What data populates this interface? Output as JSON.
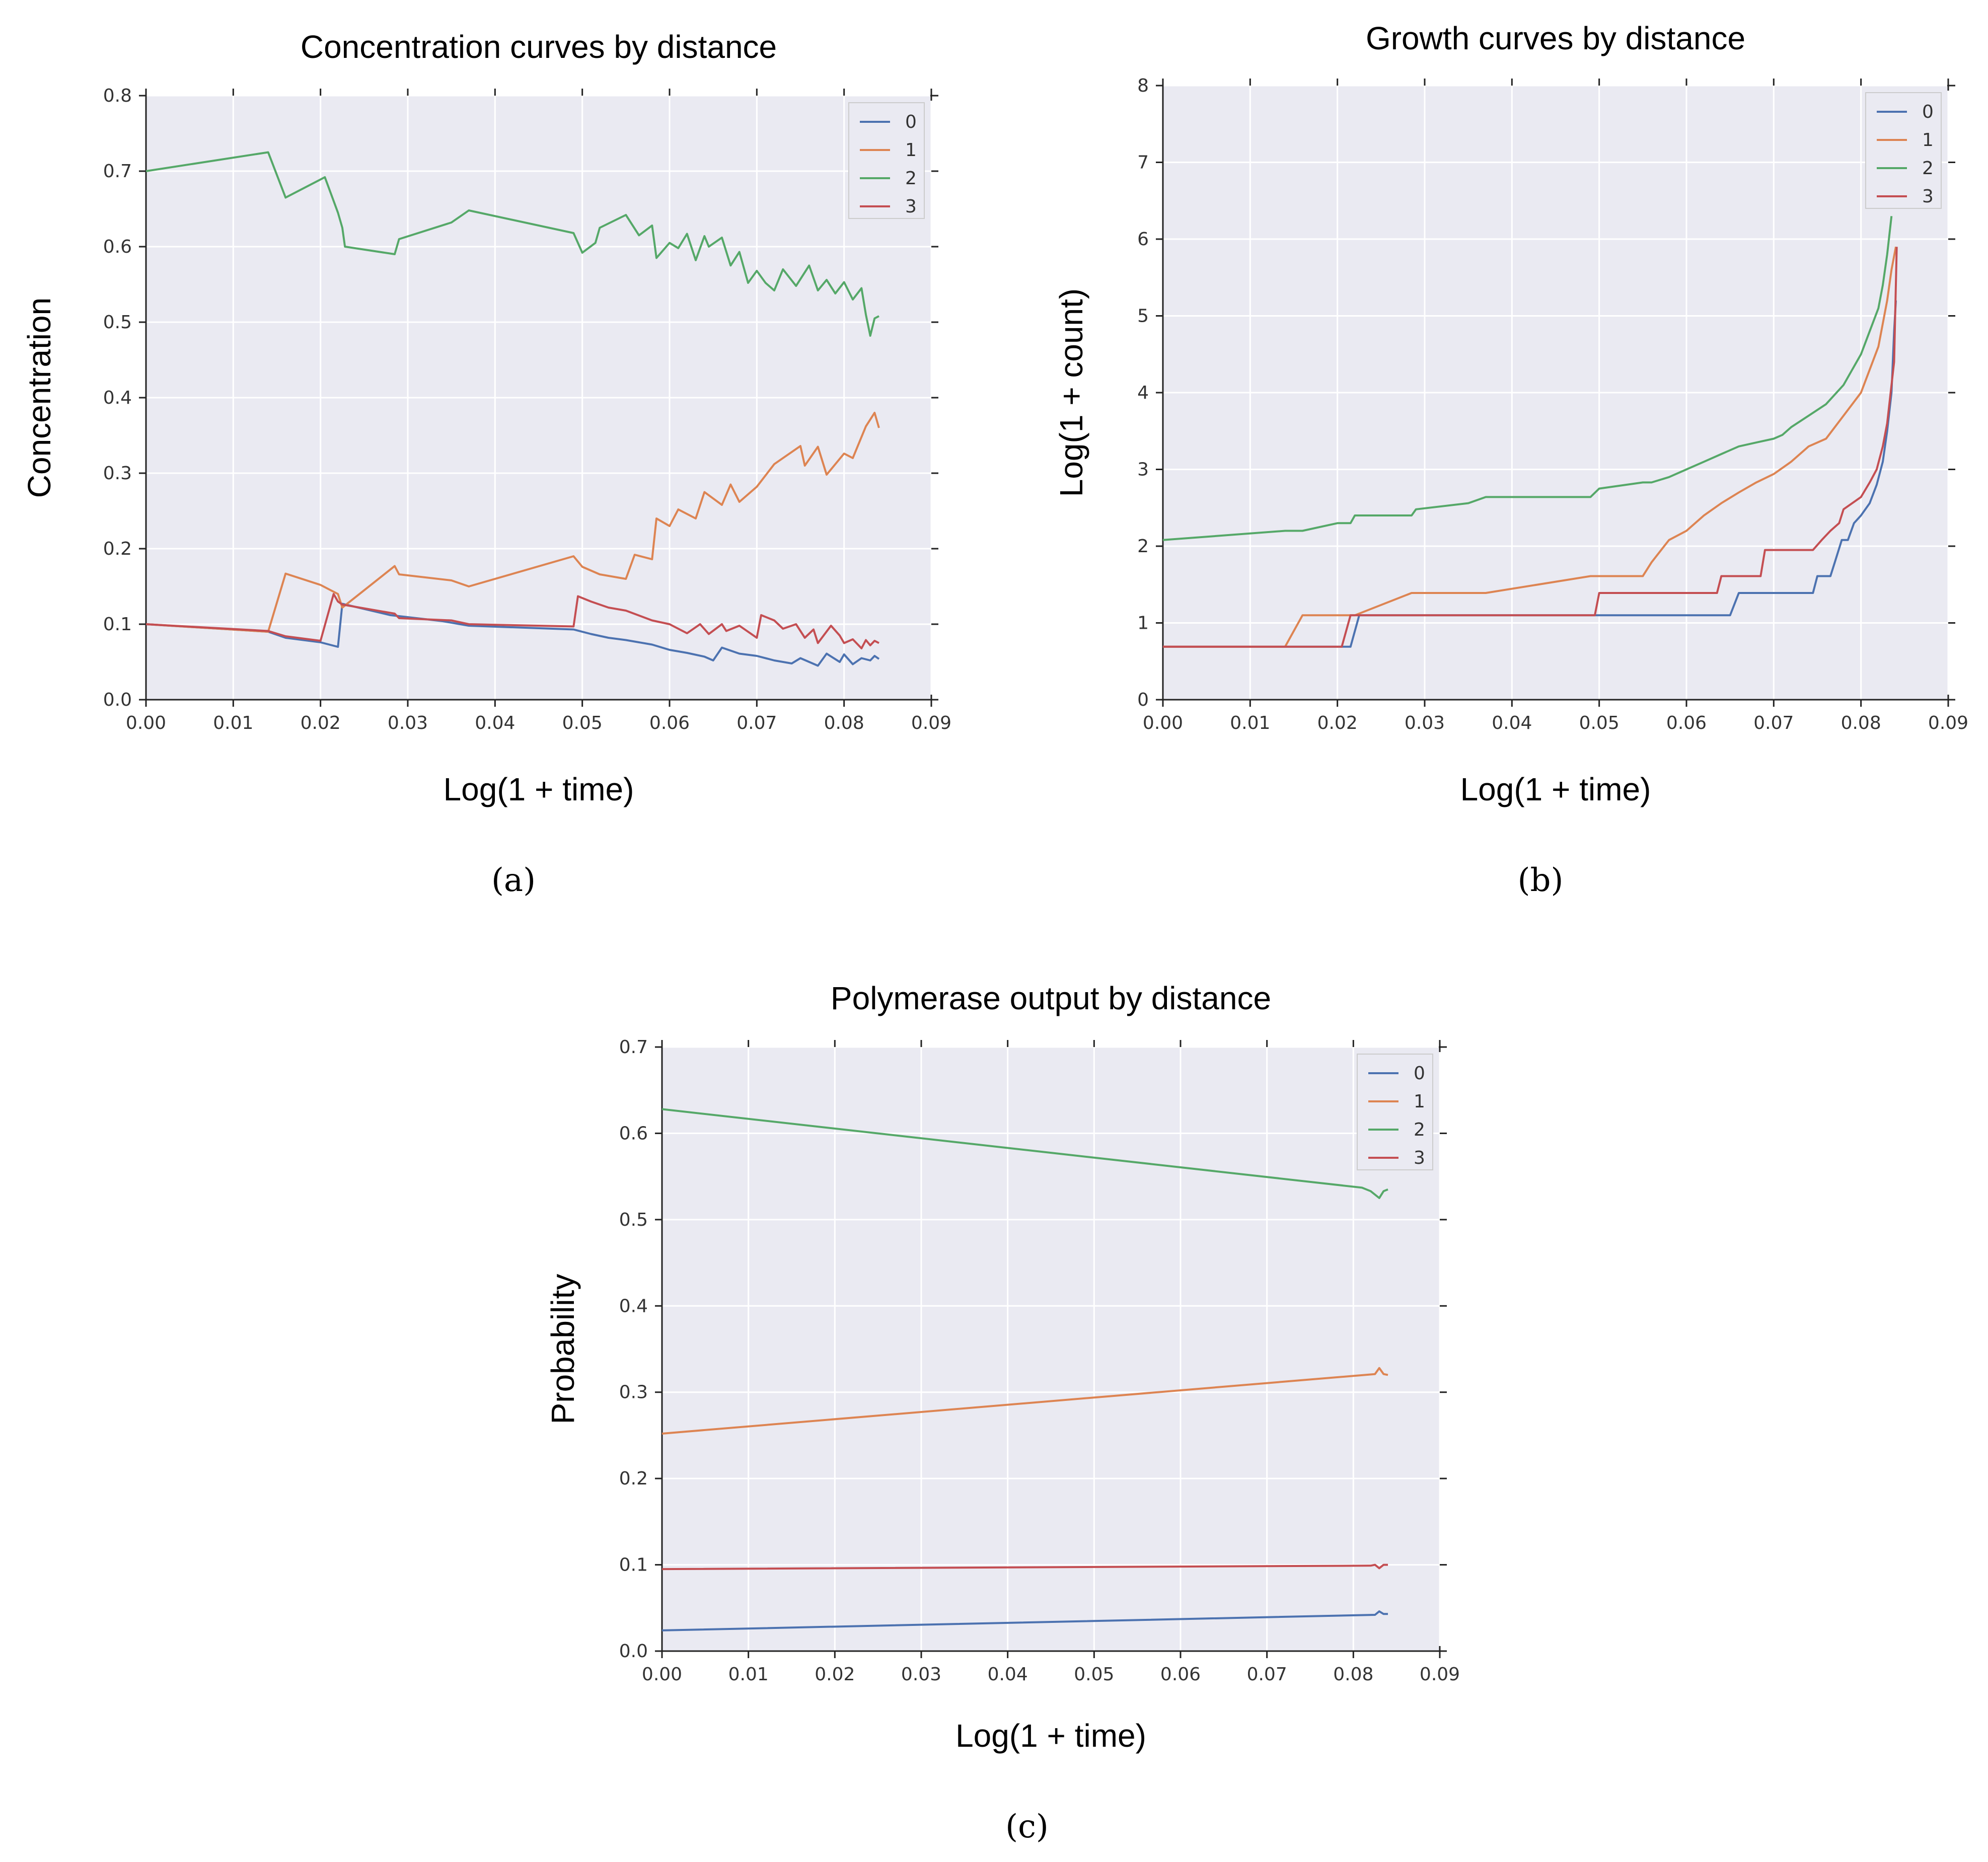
{
  "colors": {
    "series0": "#4c72b0",
    "series1": "#dd8452",
    "series2": "#55a868",
    "series3": "#c44e52",
    "plot_bg": "#eaeaf2",
    "grid": "#ffffff"
  },
  "captions": {
    "a": "(a)",
    "b": "(b)",
    "c": "(c)"
  },
  "chart_data": [
    {
      "id": "a",
      "type": "line",
      "title": "Concentration curves by distance",
      "xlabel": "Log(1 + time)",
      "ylabel": "Concentration",
      "xlim": [
        0,
        0.09
      ],
      "ylim": [
        0,
        0.8
      ],
      "xticks": [
        0,
        0.01,
        0.02,
        0.03,
        0.04,
        0.05,
        0.06,
        0.07,
        0.08,
        0.09
      ],
      "xtick_labels": [
        "0.00",
        "0.01",
        "0.02",
        "0.03",
        "0.04",
        "0.05",
        "0.06",
        "0.07",
        "0.08",
        "0.09"
      ],
      "yticks": [
        0,
        0.1,
        0.2,
        0.3,
        0.4,
        0.5,
        0.6,
        0.7,
        0.8
      ],
      "ytick_labels": [
        "0.0",
        "0.1",
        "0.2",
        "0.3",
        "0.4",
        "0.5",
        "0.6",
        "0.7",
        "0.8"
      ],
      "grid": true,
      "legend": "top-right",
      "series": [
        {
          "name": "0",
          "x": [
            0,
            0.014,
            0.016,
            0.02,
            0.022,
            0.0225,
            0.028,
            0.034,
            0.037,
            0.049,
            0.051,
            0.053,
            0.055,
            0.058,
            0.06,
            0.062,
            0.064,
            0.065,
            0.066,
            0.068,
            0.07,
            0.072,
            0.074,
            0.075,
            0.077,
            0.078,
            0.0795,
            0.08,
            0.081,
            0.082,
            0.083,
            0.0835,
            0.084
          ],
          "y": [
            0.1,
            0.09,
            0.082,
            0.076,
            0.07,
            0.127,
            0.112,
            0.104,
            0.098,
            0.093,
            0.087,
            0.082,
            0.079,
            0.073,
            0.066,
            0.062,
            0.057,
            0.052,
            0.069,
            0.061,
            0.058,
            0.052,
            0.048,
            0.055,
            0.045,
            0.061,
            0.05,
            0.06,
            0.047,
            0.055,
            0.052,
            0.058,
            0.054
          ]
        },
        {
          "name": "1",
          "x": [
            0,
            0.014,
            0.016,
            0.02,
            0.022,
            0.0225,
            0.0285,
            0.029,
            0.035,
            0.037,
            0.049,
            0.05,
            0.052,
            0.055,
            0.056,
            0.058,
            0.0585,
            0.06,
            0.061,
            0.063,
            0.064,
            0.066,
            0.067,
            0.068,
            0.07,
            0.072,
            0.073,
            0.075,
            0.0755,
            0.077,
            0.078,
            0.08,
            0.081,
            0.0825,
            0.0835,
            0.084
          ],
          "y": [
            0.1,
            0.09,
            0.167,
            0.152,
            0.14,
            0.122,
            0.177,
            0.166,
            0.158,
            0.15,
            0.19,
            0.176,
            0.166,
            0.16,
            0.192,
            0.186,
            0.24,
            0.23,
            0.252,
            0.24,
            0.275,
            0.258,
            0.285,
            0.262,
            0.282,
            0.312,
            0.32,
            0.336,
            0.31,
            0.335,
            0.298,
            0.326,
            0.32,
            0.362,
            0.38,
            0.36
          ]
        },
        {
          "name": "2",
          "x": [
            0,
            0.014,
            0.016,
            0.0205,
            0.022,
            0.0225,
            0.0228,
            0.0285,
            0.029,
            0.035,
            0.037,
            0.049,
            0.05,
            0.0515,
            0.052,
            0.055,
            0.0565,
            0.058,
            0.0585,
            0.06,
            0.061,
            0.062,
            0.063,
            0.064,
            0.0645,
            0.066,
            0.067,
            0.068,
            0.069,
            0.07,
            0.071,
            0.072,
            0.073,
            0.0745,
            0.076,
            0.077,
            0.078,
            0.079,
            0.08,
            0.081,
            0.082,
            0.0825,
            0.083,
            0.0835,
            0.084
          ],
          "y": [
            0.7,
            0.725,
            0.665,
            0.692,
            0.645,
            0.625,
            0.6,
            0.59,
            0.61,
            0.632,
            0.648,
            0.618,
            0.592,
            0.605,
            0.625,
            0.642,
            0.615,
            0.628,
            0.585,
            0.605,
            0.598,
            0.617,
            0.582,
            0.614,
            0.6,
            0.612,
            0.575,
            0.593,
            0.552,
            0.568,
            0.552,
            0.542,
            0.57,
            0.548,
            0.575,
            0.542,
            0.556,
            0.538,
            0.553,
            0.53,
            0.545,
            0.51,
            0.482,
            0.505,
            0.508
          ]
        },
        {
          "name": "3",
          "x": [
            0,
            0.014,
            0.016,
            0.02,
            0.0215,
            0.022,
            0.0225,
            0.0285,
            0.029,
            0.035,
            0.037,
            0.049,
            0.0495,
            0.051,
            0.053,
            0.055,
            0.058,
            0.06,
            0.062,
            0.0635,
            0.0645,
            0.066,
            0.0665,
            0.068,
            0.07,
            0.0705,
            0.072,
            0.073,
            0.0745,
            0.0755,
            0.0765,
            0.077,
            0.0785,
            0.0795,
            0.08,
            0.081,
            0.082,
            0.0825,
            0.083,
            0.0835,
            0.084
          ],
          "y": [
            0.1,
            0.091,
            0.084,
            0.078,
            0.14,
            0.13,
            0.126,
            0.114,
            0.108,
            0.105,
            0.1,
            0.097,
            0.137,
            0.13,
            0.122,
            0.118,
            0.105,
            0.1,
            0.088,
            0.1,
            0.087,
            0.1,
            0.091,
            0.098,
            0.082,
            0.112,
            0.105,
            0.094,
            0.1,
            0.082,
            0.093,
            0.075,
            0.098,
            0.085,
            0.075,
            0.08,
            0.068,
            0.079,
            0.072,
            0.078,
            0.075
          ]
        }
      ]
    },
    {
      "id": "b",
      "type": "line",
      "title": "Growth curves by distance",
      "xlabel": "Log(1 + time)",
      "ylabel": "Log(1 + count)",
      "xlim": [
        0,
        0.09
      ],
      "ylim": [
        0,
        8
      ],
      "xticks": [
        0,
        0.01,
        0.02,
        0.03,
        0.04,
        0.05,
        0.06,
        0.07,
        0.08,
        0.09
      ],
      "xtick_labels": [
        "0.00",
        "0.01",
        "0.02",
        "0.03",
        "0.04",
        "0.05",
        "0.06",
        "0.07",
        "0.08",
        "0.09"
      ],
      "yticks": [
        0,
        1,
        2,
        3,
        4,
        5,
        6,
        7,
        8
      ],
      "ytick_labels": [
        "0",
        "1",
        "2",
        "3",
        "4",
        "5",
        "6",
        "7",
        "8"
      ],
      "grid": true,
      "legend": "top-right",
      "series": [
        {
          "name": "0",
          "x": [
            0,
            0.0215,
            0.0225,
            0.065,
            0.066,
            0.0745,
            0.075,
            0.0765,
            0.077,
            0.0778,
            0.0785,
            0.0792,
            0.08,
            0.081,
            0.0818,
            0.0825,
            0.083,
            0.0835,
            0.0838,
            0.084
          ],
          "y": [
            0.69,
            0.69,
            1.1,
            1.1,
            1.39,
            1.39,
            1.61,
            1.61,
            1.79,
            2.08,
            2.08,
            2.3,
            2.4,
            2.56,
            2.8,
            3.1,
            3.5,
            4.0,
            4.8,
            5.2
          ]
        },
        {
          "name": "1",
          "x": [
            0,
            0.014,
            0.016,
            0.022,
            0.0285,
            0.037,
            0.049,
            0.055,
            0.056,
            0.058,
            0.06,
            0.062,
            0.064,
            0.066,
            0.068,
            0.07,
            0.072,
            0.074,
            0.076,
            0.078,
            0.08,
            0.081,
            0.082,
            0.0825,
            0.083,
            0.0835,
            0.084
          ],
          "y": [
            0.69,
            0.69,
            1.1,
            1.1,
            1.39,
            1.39,
            1.61,
            1.61,
            1.79,
            2.08,
            2.2,
            2.4,
            2.56,
            2.7,
            2.83,
            2.94,
            3.1,
            3.3,
            3.4,
            3.7,
            4.0,
            4.3,
            4.6,
            4.9,
            5.2,
            5.6,
            5.9
          ]
        },
        {
          "name": "2",
          "x": [
            0,
            0.014,
            0.016,
            0.02,
            0.0215,
            0.022,
            0.0285,
            0.029,
            0.035,
            0.037,
            0.049,
            0.05,
            0.055,
            0.056,
            0.058,
            0.06,
            0.062,
            0.064,
            0.066,
            0.068,
            0.07,
            0.071,
            0.072,
            0.074,
            0.076,
            0.078,
            0.079,
            0.08,
            0.081,
            0.082,
            0.0825,
            0.083,
            0.0835
          ],
          "y": [
            2.08,
            2.2,
            2.2,
            2.3,
            2.3,
            2.4,
            2.4,
            2.48,
            2.56,
            2.64,
            2.64,
            2.75,
            2.83,
            2.83,
            2.9,
            3.0,
            3.1,
            3.2,
            3.3,
            3.35,
            3.4,
            3.45,
            3.55,
            3.7,
            3.85,
            4.1,
            4.3,
            4.5,
            4.8,
            5.1,
            5.4,
            5.8,
            6.3
          ]
        },
        {
          "name": "3",
          "x": [
            0,
            0.0205,
            0.0215,
            0.0495,
            0.05,
            0.0635,
            0.064,
            0.0685,
            0.069,
            0.0745,
            0.0755,
            0.0765,
            0.0775,
            0.078,
            0.0795,
            0.08,
            0.081,
            0.0818,
            0.0825,
            0.083,
            0.0838,
            0.0841
          ],
          "y": [
            0.69,
            0.69,
            1.1,
            1.1,
            1.39,
            1.39,
            1.61,
            1.61,
            1.95,
            1.95,
            2.08,
            2.2,
            2.3,
            2.48,
            2.6,
            2.64,
            2.83,
            3.0,
            3.3,
            3.6,
            4.4,
            5.9
          ]
        }
      ]
    },
    {
      "id": "c",
      "type": "line",
      "title": "Polymerase output by distance",
      "xlabel": "Log(1 + time)",
      "ylabel": "Probability",
      "xlim": [
        0,
        0.09
      ],
      "ylim": [
        0,
        0.7
      ],
      "xticks": [
        0,
        0.01,
        0.02,
        0.03,
        0.04,
        0.05,
        0.06,
        0.07,
        0.08,
        0.09
      ],
      "xtick_labels": [
        "0.00",
        "0.01",
        "0.02",
        "0.03",
        "0.04",
        "0.05",
        "0.06",
        "0.07",
        "0.08",
        "0.09"
      ],
      "yticks": [
        0,
        0.1,
        0.2,
        0.3,
        0.4,
        0.5,
        0.6,
        0.7
      ],
      "ytick_labels": [
        "0.0",
        "0.1",
        "0.2",
        "0.3",
        "0.4",
        "0.5",
        "0.6",
        "0.7"
      ],
      "grid": true,
      "legend": "top-right",
      "series": [
        {
          "name": "0",
          "x": [
            0,
            0.0825,
            0.083,
            0.0835,
            0.084
          ],
          "y": [
            0.024,
            0.042,
            0.046,
            0.043,
            0.043
          ]
        },
        {
          "name": "1",
          "x": [
            0,
            0.0825,
            0.083,
            0.0835,
            0.084
          ],
          "y": [
            0.252,
            0.321,
            0.328,
            0.321,
            0.32
          ]
        },
        {
          "name": "2",
          "x": [
            0,
            0.081,
            0.082,
            0.083,
            0.0835,
            0.084
          ],
          "y": [
            0.628,
            0.537,
            0.533,
            0.525,
            0.533,
            0.535
          ]
        },
        {
          "name": "3",
          "x": [
            0,
            0.082,
            0.0825,
            0.083,
            0.0835,
            0.084
          ],
          "y": [
            0.095,
            0.099,
            0.1,
            0.096,
            0.1,
            0.1
          ]
        }
      ]
    }
  ]
}
